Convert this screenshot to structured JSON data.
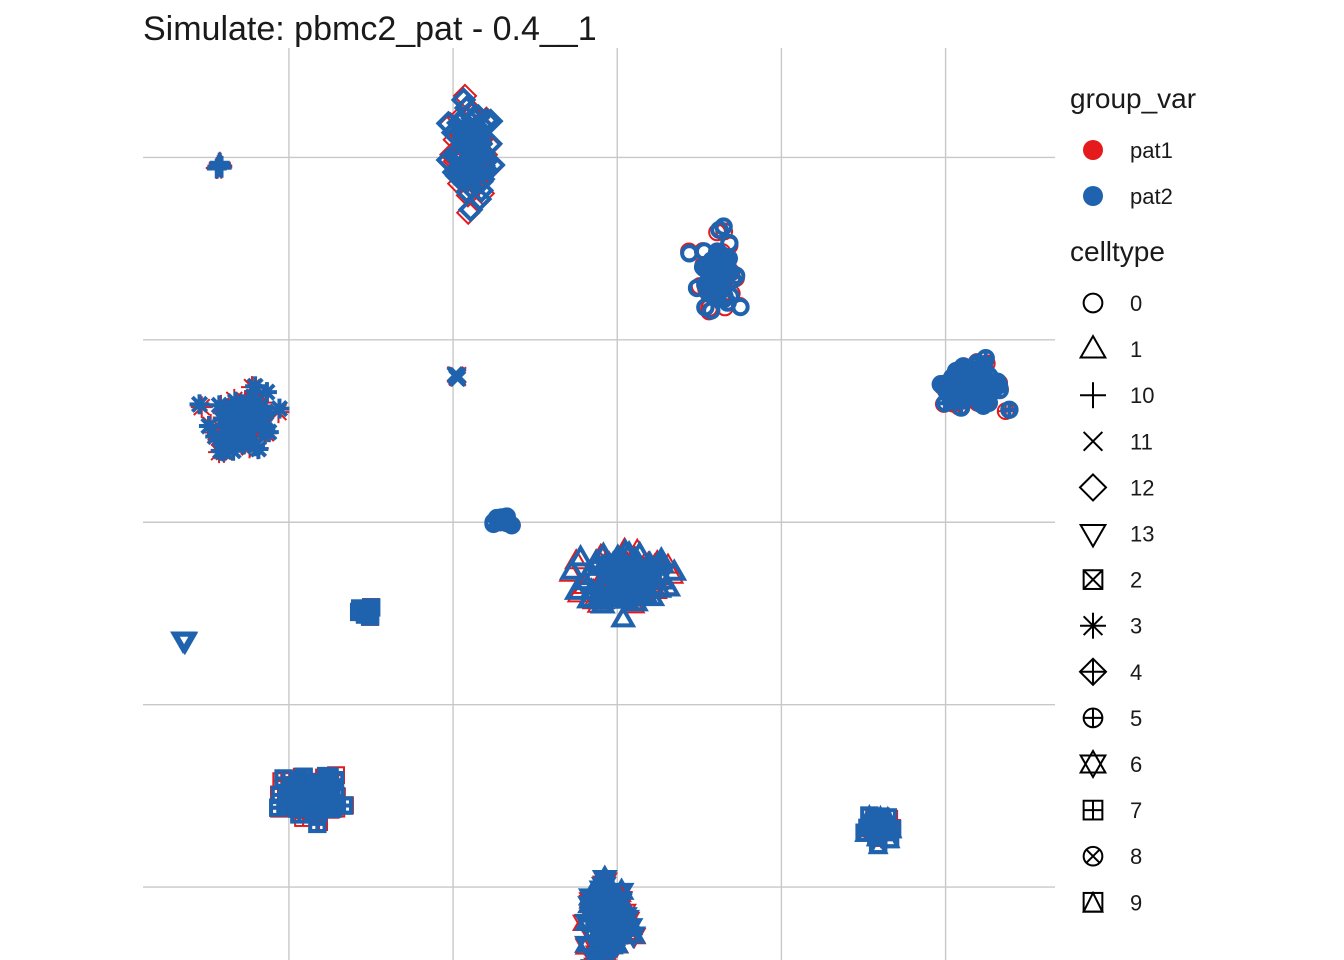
{
  "chart_data": {
    "type": "scatter",
    "title": "Simulate: pbmc2_pat - 0.4__1",
    "xlabel": "",
    "ylabel": "",
    "xlim": [
      0,
      10
    ],
    "ylim": [
      0,
      10
    ],
    "grid": true,
    "axes_ticks_visible": false,
    "x_gridlines": [
      1.6,
      3.4,
      5.2,
      7.0,
      8.8
    ],
    "y_gridlines": [
      0.8,
      2.8,
      4.8,
      6.8,
      8.8
    ],
    "colors": {
      "pat1": "#E41A1C",
      "pat2": "#1F63AE",
      "grid": "#C8C8C8"
    },
    "legends": [
      {
        "title": "group_var",
        "placement": "right",
        "entries": [
          {
            "label": "pat1",
            "color": "#E41A1C"
          },
          {
            "label": "pat2",
            "color": "#1F63AE"
          }
        ]
      },
      {
        "title": "celltype",
        "placement": "right",
        "entries": [
          {
            "label": "0",
            "shape": "circle"
          },
          {
            "label": "1",
            "shape": "triangle"
          },
          {
            "label": "10",
            "shape": "plus"
          },
          {
            "label": "11",
            "shape": "cross"
          },
          {
            "label": "12",
            "shape": "diamond"
          },
          {
            "label": "13",
            "shape": "triangle-down"
          },
          {
            "label": "2",
            "shape": "square-cross"
          },
          {
            "label": "3",
            "shape": "asterisk"
          },
          {
            "label": "4",
            "shape": "diamond-plus"
          },
          {
            "label": "5",
            "shape": "circle-plus"
          },
          {
            "label": "6",
            "shape": "star-of-david"
          },
          {
            "label": "7",
            "shape": "square-plus"
          },
          {
            "label": "8",
            "shape": "circle-cross"
          },
          {
            "label": "9",
            "shape": "square-triangle"
          }
        ]
      }
    ],
    "clusters": [
      {
        "celltype": "10",
        "shape": "plus",
        "x": 0.85,
        "y": 8.7,
        "spread": [
          0.04,
          0.06
        ],
        "n": 8
      },
      {
        "celltype": "12",
        "shape": "diamond",
        "x": 3.6,
        "y": 8.85,
        "spread": [
          0.22,
          0.5
        ],
        "n": 70
      },
      {
        "celltype": "0",
        "shape": "circle",
        "x": 6.3,
        "y": 7.55,
        "spread": [
          0.18,
          0.38
        ],
        "n": 60
      },
      {
        "celltype": "11",
        "shape": "cross",
        "x": 3.45,
        "y": 6.4,
        "spread": [
          0.03,
          0.03
        ],
        "n": 5
      },
      {
        "celltype": "5",
        "shape": "circle-plus",
        "x": 9.1,
        "y": 6.3,
        "spread": [
          0.32,
          0.22
        ],
        "n": 80
      },
      {
        "celltype": "3",
        "shape": "asterisk",
        "x": 1.1,
        "y": 5.9,
        "spread": [
          0.32,
          0.32
        ],
        "n": 70
      },
      {
        "celltype": "8",
        "shape": "circle-cross",
        "x": 3.95,
        "y": 4.8,
        "spread": [
          0.1,
          0.07
        ],
        "n": 15
      },
      {
        "celltype": "1",
        "shape": "triangle",
        "x": 5.3,
        "y": 4.2,
        "spread": [
          0.42,
          0.32
        ],
        "n": 110
      },
      {
        "celltype": "2",
        "shape": "square-cross",
        "x": 2.45,
        "y": 3.8,
        "spread": [
          0.07,
          0.07
        ],
        "n": 10
      },
      {
        "celltype": "13",
        "shape": "triangle-down",
        "x": 0.45,
        "y": 3.5,
        "spread": [
          0.02,
          0.02
        ],
        "n": 3
      },
      {
        "celltype": "7",
        "shape": "square-plus",
        "x": 1.85,
        "y": 1.8,
        "spread": [
          0.32,
          0.22
        ],
        "n": 80
      },
      {
        "celltype": "9",
        "shape": "square-triangle",
        "x": 8.1,
        "y": 1.45,
        "spread": [
          0.14,
          0.14
        ],
        "n": 30
      },
      {
        "celltype": "6",
        "shape": "star-of-david",
        "x": 5.1,
        "y": 0.45,
        "spread": [
          0.22,
          0.35
        ],
        "n": 70
      }
    ]
  }
}
